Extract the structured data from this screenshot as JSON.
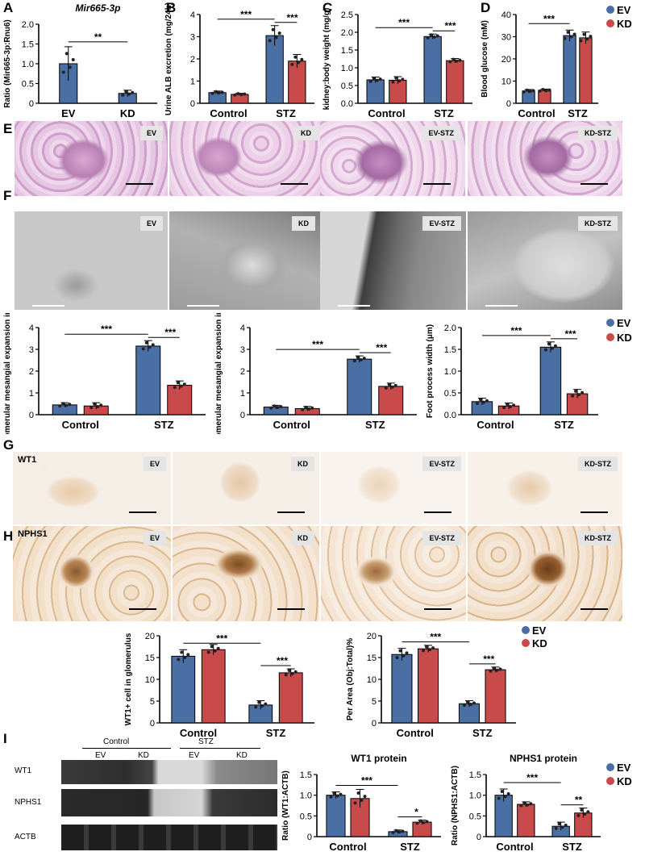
{
  "panels": {
    "A": "A",
    "B": "B",
    "C": "C",
    "D": "D",
    "E": "E",
    "F": "F",
    "G": "G",
    "H": "H",
    "I": "I"
  },
  "legend": {
    "ev": "EV",
    "kd": "KD"
  },
  "colors": {
    "ev": "#4a6fa5",
    "kd": "#c94a4a"
  },
  "micro_tags": {
    "ev": "EV",
    "kd": "KD",
    "ev_stz": "EV-STZ",
    "kd_stz": "KD-STZ"
  },
  "stain_labels": {
    "wt1": "WT1",
    "nphs1": "NPHS1"
  },
  "western": {
    "group_control": "Control",
    "group_stz": "STZ",
    "lane_labels": [
      "EV",
      "KD",
      "EV",
      "KD"
    ],
    "rows": [
      "WT1",
      "NPHS1",
      "ACTB"
    ]
  },
  "chart_data": [
    {
      "id": "A",
      "type": "bar",
      "title": "Mir665-3p",
      "ylabel": "Ratio (Mir665-3p:Rnu6)",
      "categories": [
        "EV",
        "KD"
      ],
      "ylim": [
        0,
        2.0
      ],
      "yticks": [
        "0",
        "0.5",
        "1.0",
        "1.5",
        "2.0"
      ],
      "values": [
        1.0,
        0.25
      ],
      "errors": [
        0.43,
        0.08
      ],
      "annotations": [
        {
          "text": "**",
          "between": [
            "EV",
            "KD"
          ]
        }
      ]
    },
    {
      "id": "B",
      "type": "bar",
      "ylabel": "Urine ALB excretion (mg/24h)",
      "categories": [
        "Control",
        "STZ"
      ],
      "ylim": [
        0,
        4
      ],
      "yticks": [
        "0",
        "1",
        "2",
        "3",
        "4"
      ],
      "series": [
        {
          "name": "EV",
          "values": [
            0.48,
            3.05
          ],
          "errors": [
            0.07,
            0.45
          ]
        },
        {
          "name": "KD",
          "values": [
            0.4,
            1.9
          ],
          "errors": [
            0.05,
            0.3
          ]
        }
      ],
      "annotations": [
        {
          "text": "***"
        },
        {
          "text": "***"
        }
      ]
    },
    {
      "id": "C",
      "type": "bar",
      "ylabel": "kidney:body weight (mg/g)",
      "categories": [
        "Control",
        "STZ"
      ],
      "ylim": [
        0,
        2.5
      ],
      "yticks": [
        "0.0",
        "0.5",
        "1.0",
        "1.5",
        "2.0",
        "2.5"
      ],
      "series": [
        {
          "name": "EV",
          "values": [
            0.66,
            1.88
          ],
          "errors": [
            0.08,
            0.07
          ]
        },
        {
          "name": "KD",
          "values": [
            0.65,
            1.2
          ],
          "errors": [
            0.1,
            0.06
          ]
        }
      ],
      "annotations": [
        {
          "text": "***"
        },
        {
          "text": "***"
        }
      ]
    },
    {
      "id": "D",
      "type": "bar",
      "ylabel": "Blood glucose (mM)",
      "categories": [
        "Control",
        "STZ"
      ],
      "ylim": [
        0,
        40
      ],
      "yticks": [
        "0",
        "10",
        "20",
        "30",
        "40"
      ],
      "series": [
        {
          "name": "EV",
          "values": [
            5.5,
            30.5
          ],
          "errors": [
            0.7,
            2.5
          ]
        },
        {
          "name": "KD",
          "values": [
            5.8,
            29.5
          ],
          "errors": [
            0.6,
            2.6
          ]
        }
      ],
      "annotations": [
        {
          "text": "***"
        }
      ]
    },
    {
      "id": "F1",
      "type": "bar",
      "ylabel": "Glomerular mesangial expansion index",
      "categories": [
        "Control",
        "STZ"
      ],
      "ylim": [
        0,
        4
      ],
      "yticks": [
        "0",
        "1",
        "2",
        "3",
        "4"
      ],
      "series": [
        {
          "name": "EV",
          "values": [
            0.45,
            3.15
          ],
          "errors": [
            0.1,
            0.25
          ]
        },
        {
          "name": "KD",
          "values": [
            0.4,
            1.35
          ],
          "errors": [
            0.15,
            0.2
          ]
        }
      ],
      "annotations": [
        {
          "text": "***"
        },
        {
          "text": "***"
        }
      ]
    },
    {
      "id": "F2",
      "type": "bar",
      "ylabel": "Glomerular mesangial expansion index",
      "categories": [
        "Control",
        "STZ"
      ],
      "ylim": [
        0,
        4
      ],
      "yticks": [
        "0",
        "1",
        "2",
        "3",
        "4"
      ],
      "series": [
        {
          "name": "EV",
          "values": [
            0.35,
            2.55
          ],
          "errors": [
            0.08,
            0.15
          ]
        },
        {
          "name": "KD",
          "values": [
            0.28,
            1.3
          ],
          "errors": [
            0.1,
            0.15
          ]
        }
      ],
      "annotations": [
        {
          "text": "***"
        },
        {
          "text": "***"
        }
      ]
    },
    {
      "id": "F3",
      "type": "bar",
      "ylabel": "Foot process width (μm)",
      "categories": [
        "Control",
        "STZ"
      ],
      "ylim": [
        0,
        2.0
      ],
      "yticks": [
        "0.0",
        "0.5",
        "1.0",
        "1.5",
        "2.0"
      ],
      "series": [
        {
          "name": "EV",
          "values": [
            0.3,
            1.55
          ],
          "errors": [
            0.08,
            0.12
          ]
        },
        {
          "name": "KD",
          "values": [
            0.2,
            0.48
          ],
          "errors": [
            0.07,
            0.1
          ]
        }
      ],
      "annotations": [
        {
          "text": "***"
        },
        {
          "text": "***"
        }
      ]
    },
    {
      "id": "H1",
      "type": "bar",
      "ylabel": "WT1+ cell in glomerulus",
      "categories": [
        "Control",
        "STZ"
      ],
      "ylim": [
        0,
        20
      ],
      "yticks": [
        "0",
        "5",
        "10",
        "15",
        "20"
      ],
      "series": [
        {
          "name": "EV",
          "values": [
            15.3,
            4.1
          ],
          "errors": [
            1.5,
            1.0
          ]
        },
        {
          "name": "KD",
          "values": [
            16.8,
            11.5
          ],
          "errors": [
            1.2,
            0.9
          ]
        }
      ],
      "annotations": [
        {
          "text": "***"
        },
        {
          "text": "***"
        }
      ]
    },
    {
      "id": "H2",
      "type": "bar",
      "ylabel": "Per Area (Obj:Total)%",
      "categories": [
        "Control",
        "STZ"
      ],
      "ylim": [
        0,
        20
      ],
      "yticks": [
        "0",
        "5",
        "10",
        "15",
        "20"
      ],
      "series": [
        {
          "name": "EV",
          "values": [
            15.7,
            4.4
          ],
          "errors": [
            1.4,
            0.7
          ]
        },
        {
          "name": "KD",
          "values": [
            17.0,
            12.2
          ],
          "errors": [
            0.8,
            0.6
          ]
        }
      ],
      "annotations": [
        {
          "text": "***"
        },
        {
          "text": "***"
        }
      ]
    },
    {
      "id": "I1",
      "type": "bar",
      "title": "WT1 protein",
      "ylabel": "Ratio (WT1:ACTB)",
      "categories": [
        "Control",
        "STZ"
      ],
      "ylim": [
        0,
        1.5
      ],
      "yticks": [
        "0",
        "0.5",
        "1.0",
        "1.5"
      ],
      "series": [
        {
          "name": "EV",
          "values": [
            1.0,
            0.12
          ],
          "errors": [
            0.08,
            0.04
          ]
        },
        {
          "name": "KD",
          "values": [
            0.92,
            0.35
          ],
          "errors": [
            0.22,
            0.05
          ]
        }
      ],
      "annotations": [
        {
          "text": "***"
        },
        {
          "text": "*"
        }
      ]
    },
    {
      "id": "I2",
      "type": "bar",
      "title": "NPHS1 protein",
      "ylabel": "Ratio (NPHS1:ACTB)",
      "categories": [
        "Control",
        "STZ"
      ],
      "ylim": [
        0,
        1.5
      ],
      "yticks": [
        "0",
        "0.5",
        "1.0",
        "1.5"
      ],
      "series": [
        {
          "name": "EV",
          "values": [
            1.0,
            0.25
          ],
          "errors": [
            0.15,
            0.1
          ]
        },
        {
          "name": "KD",
          "values": [
            0.78,
            0.57
          ],
          "errors": [
            0.06,
            0.12
          ]
        }
      ],
      "annotations": [
        {
          "text": "***"
        },
        {
          "text": "**"
        }
      ]
    }
  ]
}
